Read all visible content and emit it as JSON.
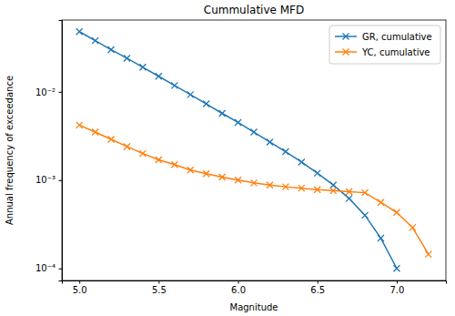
{
  "chart_data": {
    "type": "line",
    "title": "Cummulative MFD",
    "x_label": "Magnitude",
    "y_label": "Annual frequency of exceedance",
    "x": [
      5.0,
      5.1,
      5.2,
      5.3,
      5.4,
      5.5,
      5.6,
      5.7,
      5.8,
      5.9,
      6.0,
      6.1,
      6.2,
      6.3,
      6.4,
      6.5,
      6.6,
      6.7,
      6.8,
      6.9,
      7.0,
      7.1,
      7.2
    ],
    "series": [
      {
        "name": "GR, cumulative",
        "color": "#1f77b4",
        "marker": "x",
        "line_style": "solid",
        "values": [
          0.048,
          0.038,
          0.03,
          0.024,
          0.019,
          0.015,
          0.0118,
          0.0093,
          0.0073,
          0.0057,
          0.0045,
          0.0035,
          0.0027,
          0.0021,
          0.0016,
          0.0012,
          0.00088,
          0.00062,
          0.0004,
          0.00022,
          0.0001,
          null,
          null
        ]
      },
      {
        "name": "YC, cumulative",
        "color": "#ff7f0e",
        "marker": "x",
        "line_style": "solid",
        "values": [
          0.0042,
          0.0035,
          0.0029,
          0.0024,
          0.002,
          0.0017,
          0.0015,
          0.0013,
          0.00118,
          0.00108,
          0.001,
          0.00093,
          0.00088,
          0.00084,
          0.00081,
          0.00078,
          0.00076,
          0.00074,
          0.00072,
          0.00056,
          0.00043,
          0.00029,
          0.000145
        ]
      }
    ],
    "xlim": [
      4.89,
      7.31
    ],
    "xticks": [
      {
        "value": 5,
        "label": "5.0"
      },
      5.5,
      {
        "value": 6,
        "label": "6.0"
      },
      6.5,
      {
        "value": 7,
        "label": "7.0"
      }
    ],
    "ylim": [
      7.3e-05,
      0.065
    ],
    "yticks": [
      {
        "value": 0.0001,
        "label": "10⁻⁴"
      },
      {
        "value": 0.001,
        "label": "10⁻³"
      },
      {
        "value": 0.01,
        "label": "10⁻²"
      }
    ],
    "log": "y",
    "grid": false,
    "legend": "upper right"
  }
}
